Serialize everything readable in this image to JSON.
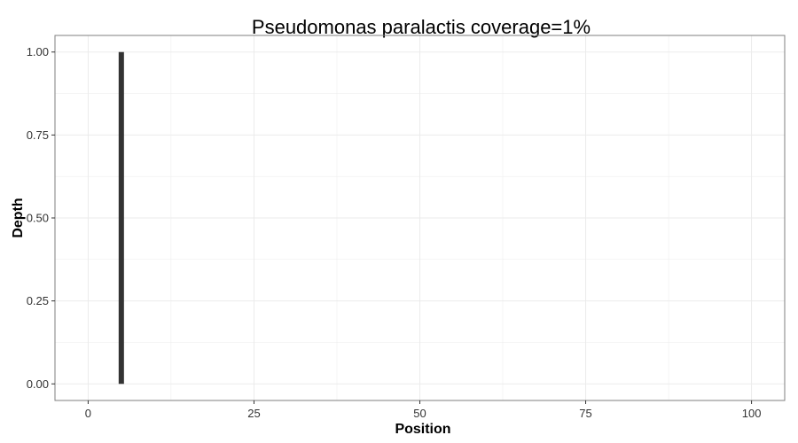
{
  "chart_data": {
    "type": "bar",
    "title": "Pseudomonas paralactis coverage=1%",
    "xlabel": "Position",
    "ylabel": "Depth",
    "xlim": [
      -5,
      105
    ],
    "ylim": [
      -0.05,
      1.05
    ],
    "x_ticks": [
      0,
      25,
      50,
      75,
      100
    ],
    "x_tick_labels": [
      "0",
      "25",
      "50",
      "75",
      "100"
    ],
    "y_ticks": [
      0,
      0.25,
      0.5,
      0.75,
      1
    ],
    "y_tick_labels": [
      "0.00",
      "0.25",
      "0.50",
      "0.75",
      "1.00"
    ],
    "grid": true,
    "legend": "none",
    "points": [
      {
        "x": 5,
        "y": 1
      }
    ],
    "colors": {
      "bar": "#333333",
      "grid": "#ebebeb",
      "panel_border": "#7f7f7f"
    }
  }
}
